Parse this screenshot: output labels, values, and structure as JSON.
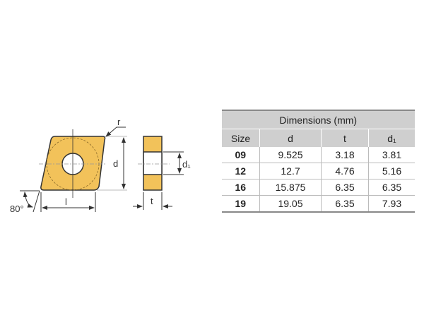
{
  "diagram": {
    "labels": {
      "radius": "r",
      "diameter": "d",
      "length": "l",
      "thickness": "t",
      "hole_diameter": "d₁",
      "angle": "80°"
    },
    "colors": {
      "insert_fill": "#f2c25a",
      "outline": "#333333"
    }
  },
  "table": {
    "title": "Dimensions (mm)",
    "columns": [
      "Size",
      "d",
      "t",
      "d₁"
    ],
    "rows": [
      [
        "09",
        "9.525",
        "3.18",
        "3.81"
      ],
      [
        "12",
        "12.7",
        "4.76",
        "5.16"
      ],
      [
        "16",
        "15.875",
        "6.35",
        "6.35"
      ],
      [
        "19",
        "19.05",
        "6.35",
        "7.93"
      ]
    ]
  }
}
